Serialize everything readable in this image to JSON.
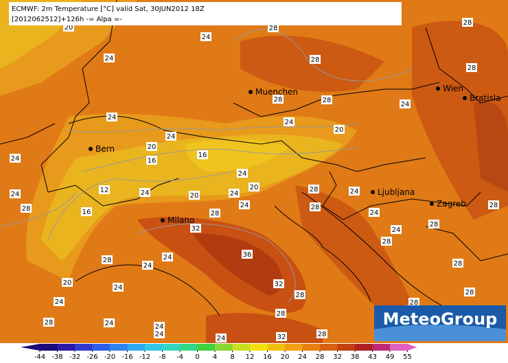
{
  "header": {
    "line1": "ECMWF: 2m Temperature [°C] valid Sat, 30JUN2012 18Z",
    "line2": "[2012062512]+126h -= Alpa =-"
  },
  "cities": [
    "Muenchen",
    "Wien",
    "Bratisla",
    "Bern",
    "Ljubljana",
    "Zagreb",
    "Milano"
  ],
  "contour_labels": [
    20,
    24,
    28,
    28,
    24,
    28,
    28,
    28,
    28,
    24,
    24,
    24,
    20,
    24,
    20,
    24,
    16,
    16,
    24,
    20,
    12,
    24,
    24,
    20,
    28,
    24,
    24,
    28,
    16,
    24,
    28,
    28,
    24,
    28,
    28,
    24,
    32,
    28,
    28,
    24,
    36,
    24,
    28,
    20,
    32,
    24,
    24,
    28,
    28,
    28,
    24,
    24,
    28,
    24,
    24,
    32,
    28,
    28
  ],
  "logo": "MeteoGroup",
  "colorbar": {
    "ticks": [
      -44,
      -38,
      -32,
      -26,
      -20,
      -16,
      -12,
      -8,
      -4,
      0,
      4,
      8,
      12,
      16,
      20,
      24,
      28,
      32,
      38,
      43,
      49,
      55
    ],
    "colors": [
      "#1a0a7a",
      "#2a1aa8",
      "#2e3ad0",
      "#2f5ee8",
      "#3084f0",
      "#2ea8f0",
      "#30c8e8",
      "#30d8c0",
      "#30d888",
      "#40d040",
      "#88d830",
      "#c8e020",
      "#f0e010",
      "#f0c010",
      "#f0a010",
      "#e88010",
      "#d86010",
      "#c04010",
      "#b02020",
      "#c02878",
      "#e060c0"
    ]
  }
}
